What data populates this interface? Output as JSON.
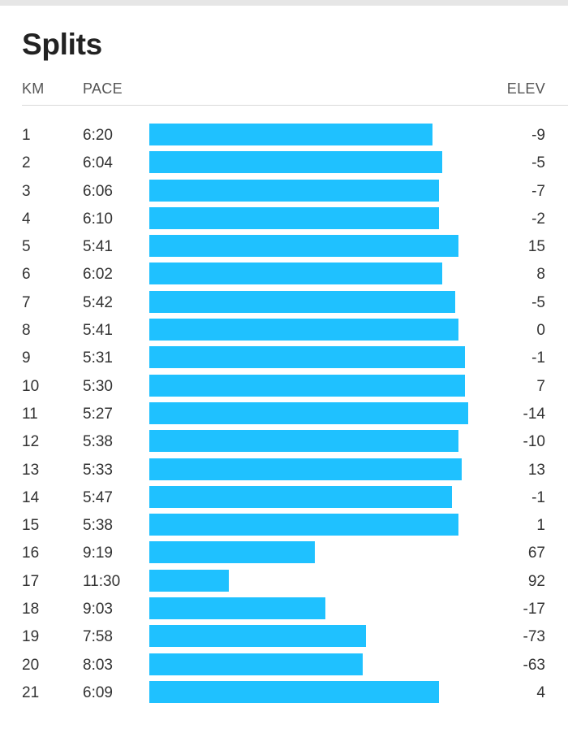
{
  "title": "Splits",
  "headers": {
    "km": "KM",
    "pace": "PACE",
    "elev": "ELEV"
  },
  "bar_color": "#1fc1ff",
  "splits": [
    {
      "km": "1",
      "pace": "6:20",
      "elev": "-9",
      "bar_fraction": 0.889
    },
    {
      "km": "2",
      "pace": "6:04",
      "elev": "-5",
      "bar_fraction": 0.919
    },
    {
      "km": "3",
      "pace": "6:06",
      "elev": "-7",
      "bar_fraction": 0.909
    },
    {
      "km": "4",
      "pace": "6:10",
      "elev": "-2",
      "bar_fraction": 0.909
    },
    {
      "km": "5",
      "pace": "5:41",
      "elev": "15",
      "bar_fraction": 0.969
    },
    {
      "km": "6",
      "pace": "6:02",
      "elev": "8",
      "bar_fraction": 0.919
    },
    {
      "km": "7",
      "pace": "5:42",
      "elev": "-5",
      "bar_fraction": 0.959
    },
    {
      "km": "8",
      "pace": "5:41",
      "elev": "0",
      "bar_fraction": 0.969
    },
    {
      "km": "9",
      "pace": "5:31",
      "elev": "-1",
      "bar_fraction": 0.99
    },
    {
      "km": "10",
      "pace": "5:30",
      "elev": "7",
      "bar_fraction": 0.99
    },
    {
      "km": "11",
      "pace": "5:27",
      "elev": "-14",
      "bar_fraction": 1.0
    },
    {
      "km": "12",
      "pace": "5:38",
      "elev": "-10",
      "bar_fraction": 0.969
    },
    {
      "km": "13",
      "pace": "5:33",
      "elev": "13",
      "bar_fraction": 0.98
    },
    {
      "km": "14",
      "pace": "5:47",
      "elev": "-1",
      "bar_fraction": 0.949
    },
    {
      "km": "15",
      "pace": "5:38",
      "elev": "1",
      "bar_fraction": 0.969
    },
    {
      "km": "16",
      "pace": "9:19",
      "elev": "67",
      "bar_fraction": 0.52
    },
    {
      "km": "17",
      "pace": "11:30",
      "elev": "92",
      "bar_fraction": 0.25
    },
    {
      "km": "18",
      "pace": "9:03",
      "elev": "-17",
      "bar_fraction": 0.551
    },
    {
      "km": "19",
      "pace": "7:58",
      "elev": "-73",
      "bar_fraction": 0.679
    },
    {
      "km": "20",
      "pace": "8:03",
      "elev": "-63",
      "bar_fraction": 0.668
    },
    {
      "km": "21",
      "pace": "6:09",
      "elev": "4",
      "bar_fraction": 0.909
    }
  ]
}
